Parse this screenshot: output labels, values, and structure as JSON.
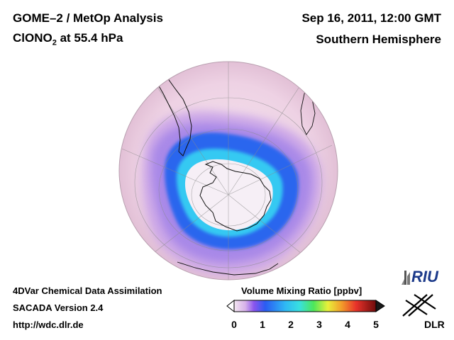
{
  "header": {
    "title_line1": "GOME–2 / MetOp Analysis",
    "title_species": "ClONO",
    "title_subscript": "2",
    "title_level": " at 55.4 hPa",
    "date": "Sep 16, 2011, 12:00 GMT",
    "region": "Southern Hemisphere"
  },
  "footer": {
    "line1": "4DVar Chemical Data Assimilation",
    "line2": "SACADA Version 2.4",
    "line3": "http://wdc.dlr.de"
  },
  "colorbar": {
    "title": "Volume Mixing Ratio [ppbv]",
    "ticks": [
      "0",
      "1",
      "2",
      "3",
      "4",
      "5"
    ],
    "range": [
      0,
      5
    ],
    "colors": [
      "#f4e6f1",
      "#c28fe0",
      "#6a3df0",
      "#2a6cf2",
      "#2fd3f6",
      "#4de65a",
      "#f3f23a",
      "#f39b2a",
      "#e8322a",
      "#7a1010"
    ]
  },
  "logos": {
    "riu": "RIU",
    "dlr": "DLR"
  },
  "map": {
    "projection": "orthographic",
    "hemisphere": "south",
    "background_color": "#f2dbe8",
    "vortex_color": "#2f6ef0",
    "collar_color": "#b58ee6",
    "core_color": "#f6f0f6"
  }
}
